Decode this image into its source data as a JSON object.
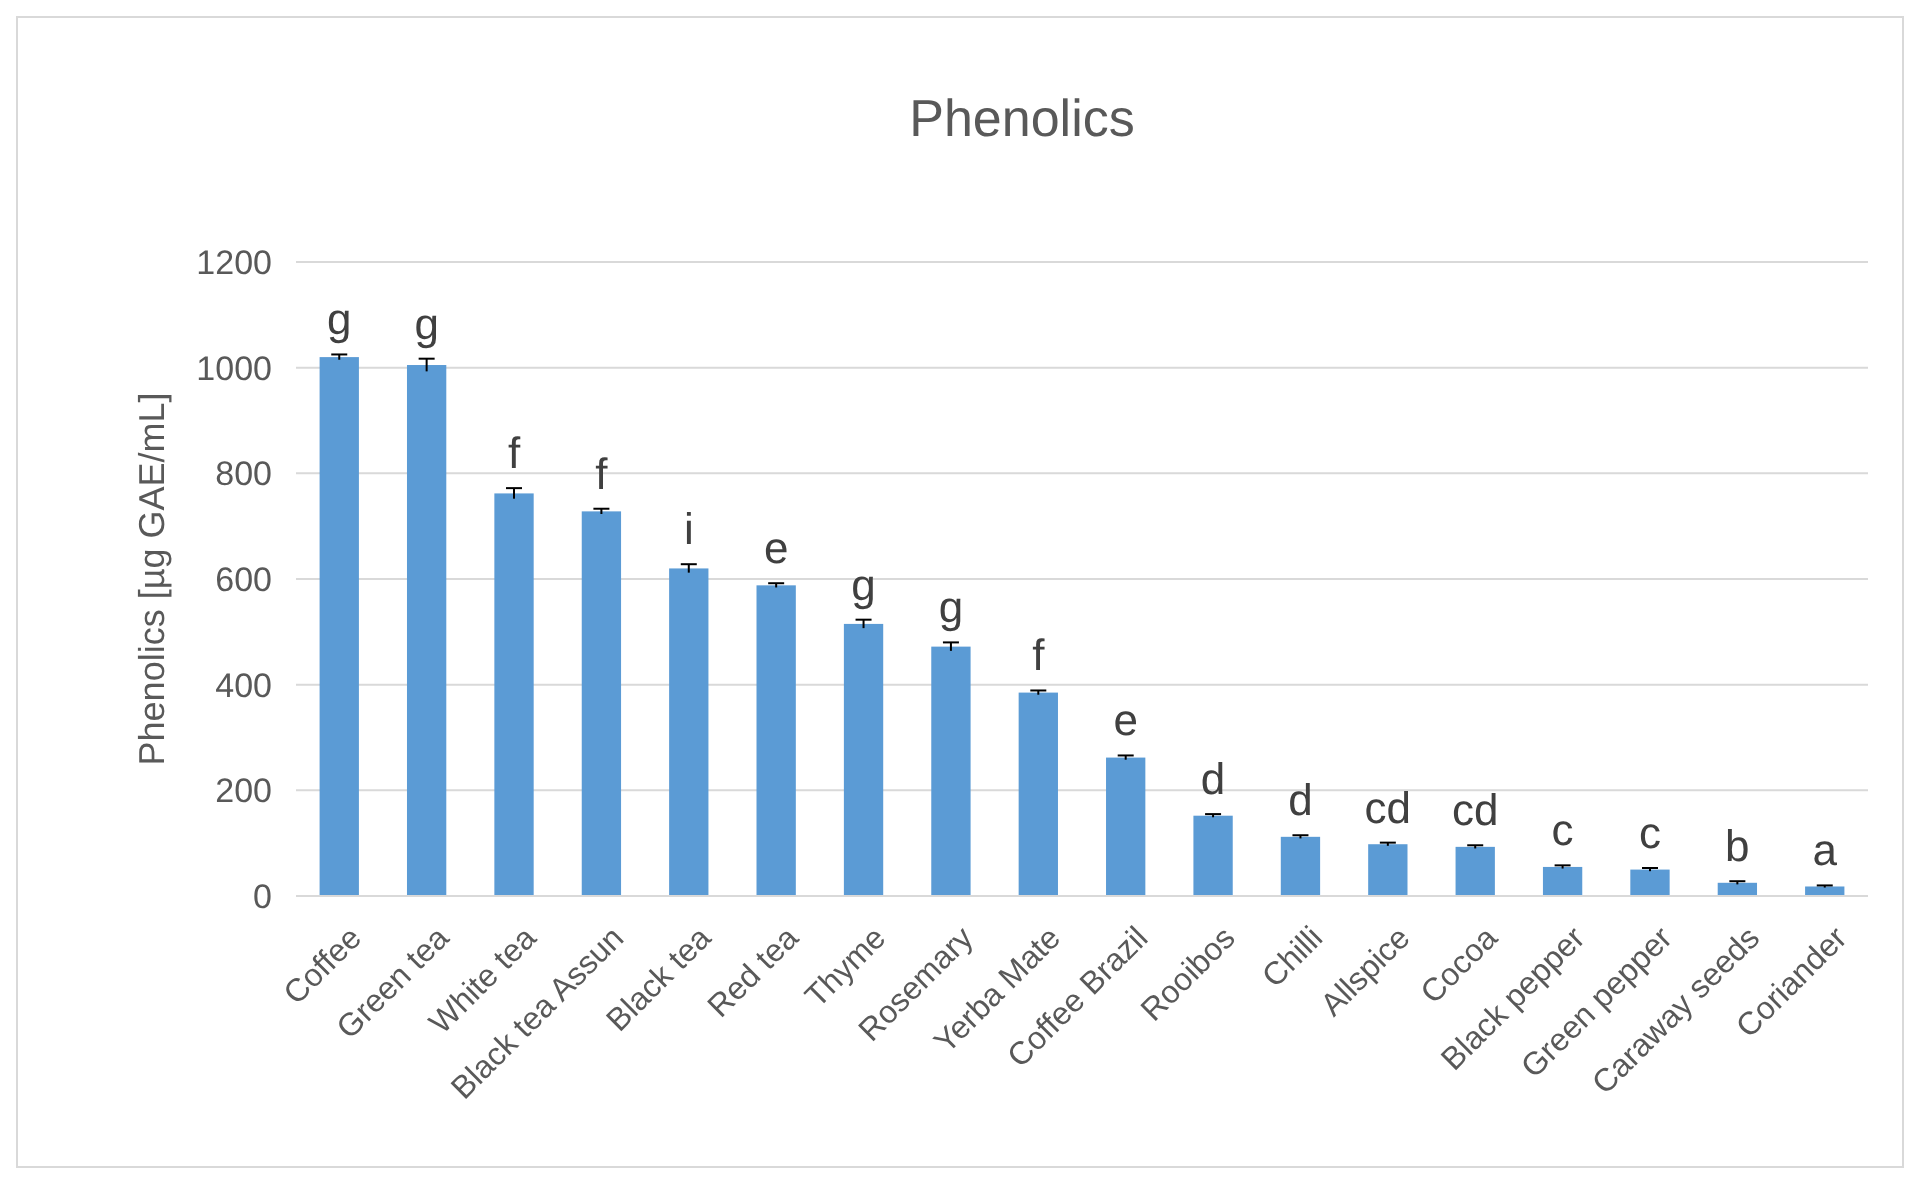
{
  "chart_data": {
    "type": "bar",
    "title": "Phenolics",
    "ylabel": "Phenolics [µg GAE/mL]",
    "categories": [
      "Coffee",
      "Green tea",
      "White tea",
      "Black tea Assun",
      "Black tea",
      "Red tea",
      "Thyme",
      "Rosemary",
      "Yerba Mate",
      "Coffee Brazil",
      "Rooibos",
      "Chilli",
      "Allspice",
      "Cocoa",
      "Black pepper",
      "Green pepper",
      "Caraway seeds",
      "Coriander"
    ],
    "values": [
      1020,
      1005,
      762,
      728,
      620,
      588,
      515,
      472,
      385,
      262,
      152,
      112,
      98,
      93,
      55,
      50,
      25,
      18
    ],
    "errors": [
      5,
      12,
      10,
      5,
      8,
      4,
      8,
      8,
      4,
      4,
      3,
      3,
      3,
      3,
      3,
      3,
      3,
      2
    ],
    "value_labels": [
      "g",
      "g",
      "f",
      "f",
      "i",
      "e",
      "g",
      "g",
      "f",
      "e",
      "d",
      "d",
      "cd",
      "cd",
      "c",
      "c",
      "b",
      "a"
    ],
    "color": "#5b9bd5",
    "ylim": [
      0,
      1200
    ],
    "yticks": [
      0,
      200,
      400,
      600,
      800,
      1000,
      1200
    ],
    "grid": "y"
  }
}
